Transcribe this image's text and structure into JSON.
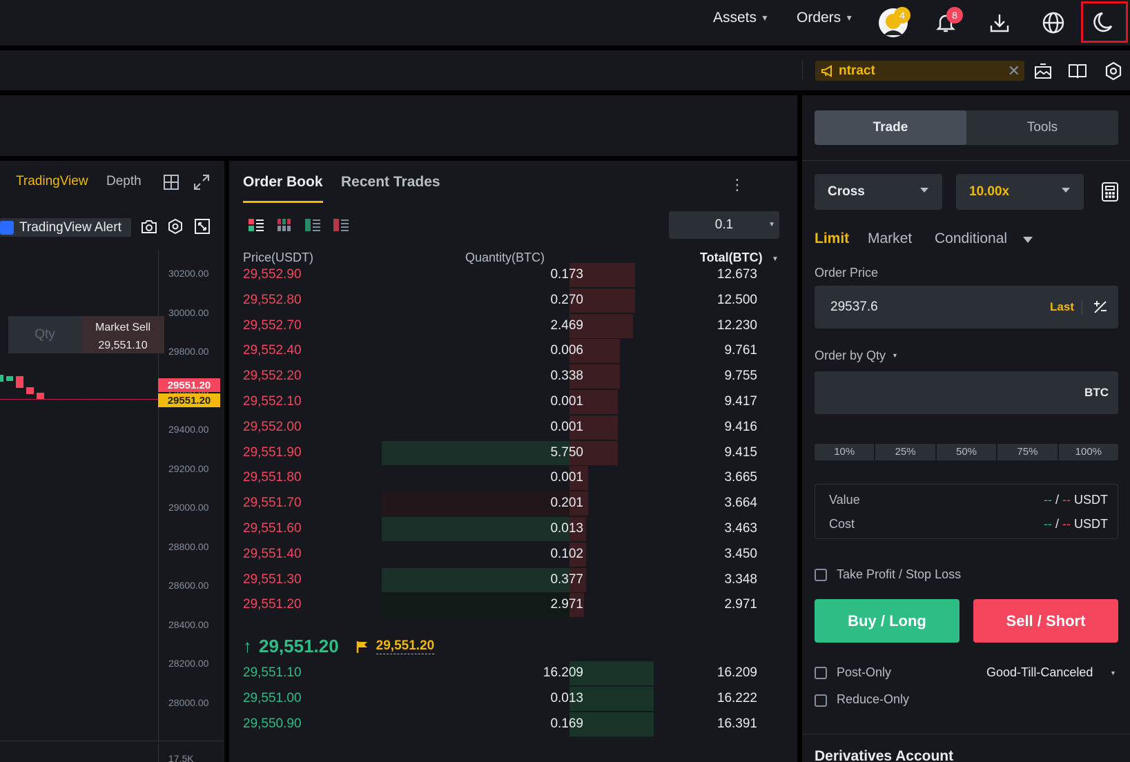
{
  "colors": {
    "up": "#2ebd85",
    "down": "#f6465d",
    "accent": "#f0b90b",
    "panel": "#17181e",
    "input": "#2b2f36"
  },
  "topnav": {
    "assets": "Assets",
    "orders": "Orders",
    "avatar_badge": "4",
    "bell_badge": "8",
    "icons": [
      "avatar-icon",
      "bell-icon",
      "download-icon",
      "globe-icon",
      "moon-icon"
    ]
  },
  "subbar": {
    "announcement": "ntract",
    "icons": [
      "megaphone-icon",
      "close-icon",
      "image-icon",
      "book-icon",
      "settings-icon"
    ]
  },
  "chart": {
    "tabs": [
      "TradingView",
      "Depth"
    ],
    "alert_label": "TradingView Alert",
    "qty_placeholder": "Qty",
    "market_sell_label": "Market Sell",
    "market_sell_price": "29,551.10",
    "y_ticks": [
      "30200.00",
      "30000.00",
      "29800.00",
      "29600.00",
      "29400.00",
      "29200.00",
      "29000.00",
      "28800.00",
      "28600.00",
      "28400.00",
      "28200.00",
      "28000.00"
    ],
    "price_tag_red": "29551.20",
    "price_tag_yellow": "29551.20",
    "volume_tick": "17.5K"
  },
  "orderbook": {
    "tabs": [
      "Order Book",
      "Recent Trades"
    ],
    "precision": "0.1",
    "headers": {
      "price": "Price(USDT)",
      "qty": "Quantity(BTC)",
      "total": "Total(BTC)"
    },
    "asks": [
      {
        "price": "29,552.90",
        "qty": "0.173",
        "total": "12.673",
        "depth": 0.31,
        "qbar": 0
      },
      {
        "price": "29,552.80",
        "qty": "0.270",
        "total": "12.500",
        "depth": 0.31,
        "qbar": 0
      },
      {
        "price": "29,552.70",
        "qty": "2.469",
        "total": "12.230",
        "depth": 0.3,
        "qbar": 0
      },
      {
        "price": "29,552.40",
        "qty": "0.006",
        "total": "9.761",
        "depth": 0.24,
        "qbar": 0
      },
      {
        "price": "29,552.20",
        "qty": "0.338",
        "total": "9.755",
        "depth": 0.24,
        "qbar": 0
      },
      {
        "price": "29,552.10",
        "qty": "0.001",
        "total": "9.417",
        "depth": 0.23,
        "qbar": 0
      },
      {
        "price": "29,552.00",
        "qty": "0.001",
        "total": "9.416",
        "depth": 0.23,
        "qbar": 0
      },
      {
        "price": "29,551.90",
        "qty": "5.750",
        "total": "9.415",
        "depth": 0.23,
        "qbar": 1.0,
        "qcolor": "green"
      },
      {
        "price": "29,551.80",
        "qty": "0.001",
        "total": "3.665",
        "depth": 0.09,
        "qbar": 0
      },
      {
        "price": "29,551.70",
        "qty": "0.201",
        "total": "3.664",
        "depth": 0.09,
        "qbar": 1.0,
        "qcolor": "red"
      },
      {
        "price": "29,551.60",
        "qty": "0.013",
        "total": "3.463",
        "depth": 0.08,
        "qbar": 1.0,
        "qcolor": "green"
      },
      {
        "price": "29,551.40",
        "qty": "0.102",
        "total": "3.450",
        "depth": 0.08,
        "qbar": 0
      },
      {
        "price": "29,551.30",
        "qty": "0.377",
        "total": "3.348",
        "depth": 0.08,
        "qbar": 1.0,
        "qcolor": "green"
      },
      {
        "price": "29,551.20",
        "qty": "2.971",
        "total": "2.971",
        "depth": 0.07,
        "qbar": 1.0,
        "qcolor": "dark"
      }
    ],
    "last_price": "29,551.20",
    "mark_price": "29,551.20",
    "bids": [
      {
        "price": "29,551.10",
        "qty": "16.209",
        "total": "16.209",
        "depth": 0.4
      },
      {
        "price": "29,551.00",
        "qty": "0.013",
        "total": "16.222",
        "depth": 0.4
      },
      {
        "price": "29,550.90",
        "qty": "0.169",
        "total": "16.391",
        "depth": 0.4
      }
    ]
  },
  "orderpanel": {
    "tabs": {
      "trade": "Trade",
      "tools": "Tools"
    },
    "margin_mode": "Cross",
    "leverage": "10.00x",
    "order_types": {
      "limit": "Limit",
      "market": "Market",
      "conditional": "Conditional"
    },
    "order_price_label": "Order Price",
    "order_price_value": "29537.6",
    "last_label": "Last",
    "order_by_label": "Order by Qty",
    "qty_unit": "BTC",
    "percents": [
      "10%",
      "25%",
      "50%",
      "75%",
      "100%"
    ],
    "value_label": "Value",
    "cost_label": "Cost",
    "dash": "--",
    "slash": "/",
    "usdt": "USDT",
    "tpsl_label": "Take Profit / Stop Loss",
    "buy_label": "Buy / Long",
    "sell_label": "Sell / Short",
    "post_only_label": "Post-Only",
    "tif_label": "Good-Till-Canceled",
    "reduce_only_label": "Reduce-Only",
    "account_label": "Derivatives Account"
  }
}
